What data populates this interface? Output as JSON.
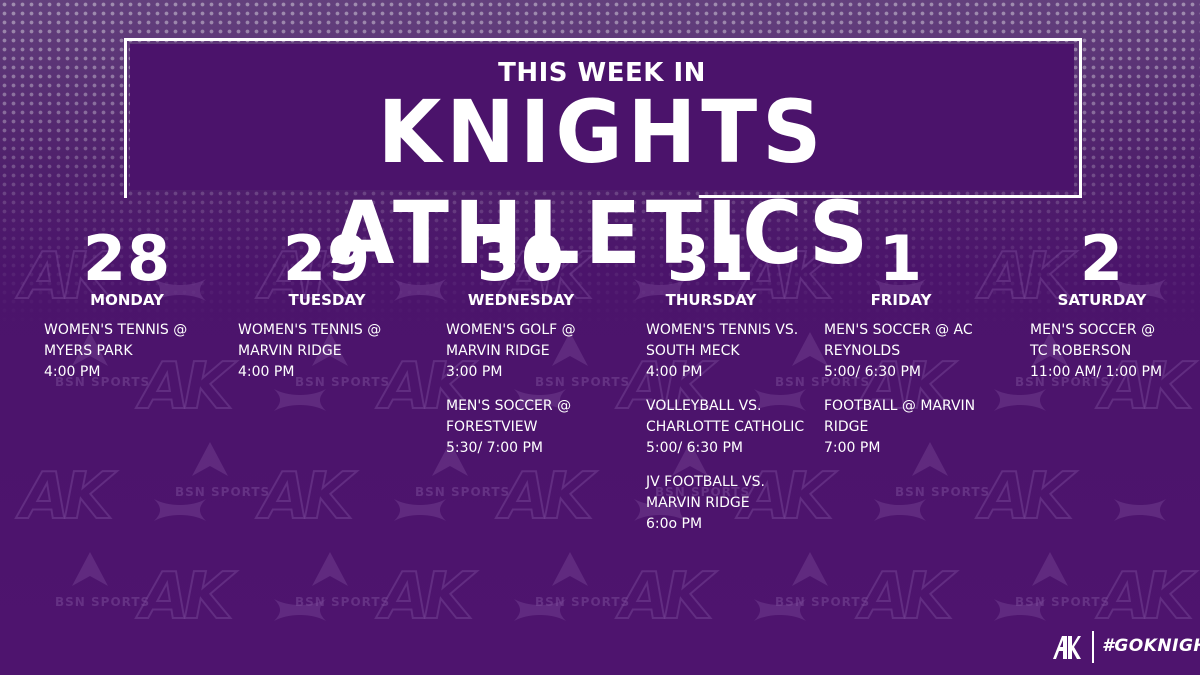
{
  "header": {
    "subtitle": "THIS WEEK IN",
    "title": "KNIGHTS ATHLETICS"
  },
  "days": [
    {
      "number": "28",
      "name": "MONDAY",
      "events": [
        {
          "lines": [
            "WOMEN'S TENNIS @",
            "MYERS PARK",
            "4:00 PM"
          ]
        }
      ]
    },
    {
      "number": "29",
      "name": "TUESDAY",
      "events": [
        {
          "lines": [
            "WOMEN'S TENNIS @",
            "MARVIN RIDGE",
            "4:00 PM"
          ]
        }
      ]
    },
    {
      "number": "30",
      "name": "WEDNESDAY",
      "events": [
        {
          "lines": [
            "WOMEN'S GOLF @",
            "MARVIN RIDGE",
            "3:00 PM"
          ]
        },
        {
          "lines": [
            "MEN'S SOCCER @",
            "FORESTVIEW",
            "5:30/ 7:00 PM"
          ]
        }
      ]
    },
    {
      "number": "31",
      "name": "THURSDAY",
      "events": [
        {
          "lines": [
            "WOMEN'S TENNIS VS.",
            "SOUTH MECK",
            "4:00 PM"
          ]
        },
        {
          "lines": [
            "VOLLEYBALL VS.",
            "CHARLOTTE CATHOLIC",
            "5:00/ 6:30 PM"
          ]
        },
        {
          "lines": [
            "JV FOOTBALL VS.",
            "MARVIN RIDGE",
            "6:0o PM"
          ]
        }
      ]
    },
    {
      "number": "1",
      "name": "FRIDAY",
      "events": [
        {
          "lines": [
            "MEN'S SOCCER @ AC",
            "REYNOLDS",
            "5:00/ 6:30 PM"
          ]
        },
        {
          "lines": [
            "FOOTBALL @ MARVIN",
            "RIDGE",
            "7:00 PM"
          ]
        }
      ]
    },
    {
      "number": "2",
      "name": "SATURDAY",
      "events": [
        {
          "lines": [
            "MEN'S SOCCER @",
            "TC ROBERSON",
            "11:00 AM/ 1:00 PM"
          ]
        }
      ]
    }
  ],
  "footer": {
    "logo_text": "AK",
    "hashtag": "#GOKNIGHTS"
  },
  "watermark": {
    "logo_text": "AK",
    "sponsor_text": "BSN SPORTS"
  },
  "colors": {
    "background": "#4b146b",
    "banner": "#4b136b",
    "text": "#ffffff"
  }
}
